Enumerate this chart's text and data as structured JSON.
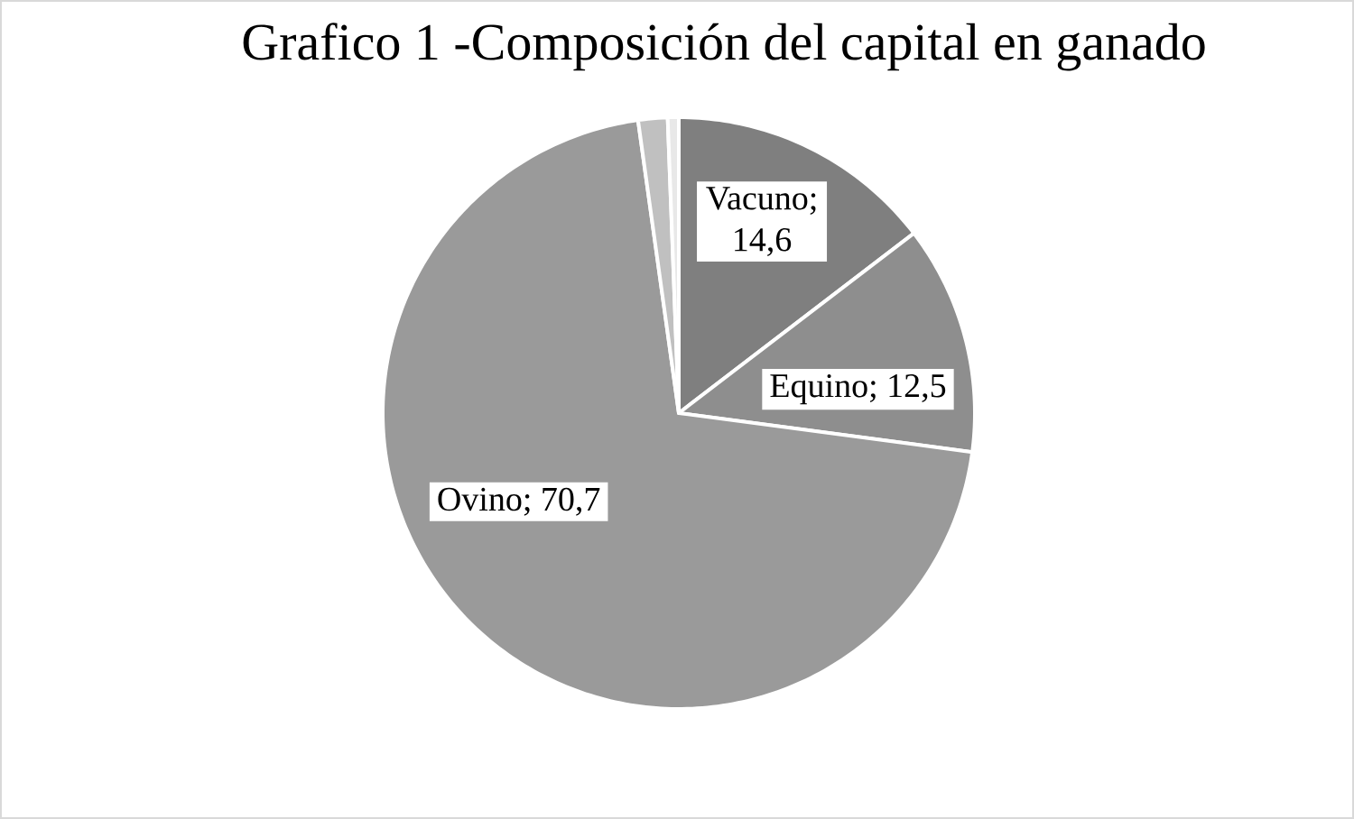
{
  "chart_data": {
    "type": "pie",
    "title": "Grafico 1 -Composición del capital en ganado",
    "categories": [
      null,
      null,
      null,
      null,
      null
    ],
    "values": [
      14.6,
      12.5,
      70.7,
      1.6,
      0.6
    ],
    "colors": [
      "#7f7f7f",
      "#8e8e8e",
      "#9a9a9a",
      "#c0c0c0",
      "#e8e8e8"
    ],
    "value_labels": [
      "Vacuno; 14,6",
      "Equino; 12,5",
      "Ovino; 70,7",
      null,
      null
    ]
  }
}
